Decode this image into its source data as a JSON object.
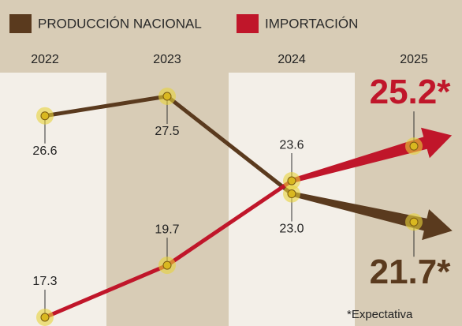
{
  "chart_data": {
    "type": "line",
    "categories": [
      "2022",
      "2023",
      "2024",
      "2025"
    ],
    "series": [
      {
        "name": "PRODUCCIÓN NACIONAL",
        "color": "#5a3a1e",
        "values": [
          26.6,
          27.5,
          23.0,
          21.7
        ],
        "value_labels": [
          "26.6",
          "27.5",
          "23.0",
          "21.7*"
        ]
      },
      {
        "name": "IMPORTACIÓN",
        "color": "#c0162a",
        "values": [
          17.3,
          19.7,
          23.6,
          25.2
        ],
        "value_labels": [
          "17.3",
          "19.7",
          "23.6",
          "25.2*"
        ]
      }
    ],
    "annotation": "*Expectativa"
  }
}
